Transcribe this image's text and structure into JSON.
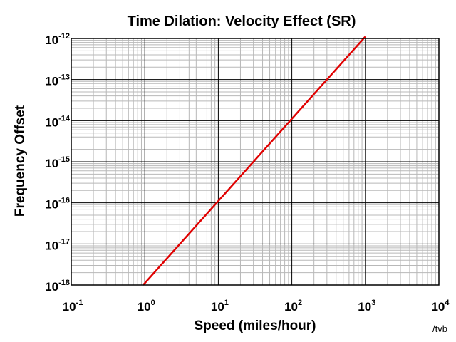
{
  "chart_data": {
    "type": "line",
    "title": "Time Dilation: Velocity Effect (SR)",
    "xlabel": "Speed (miles/hour)",
    "ylabel": "Frequency Offset",
    "xscale": "log",
    "yscale": "log",
    "xlim": [
      0.1,
      10000
    ],
    "ylim": [
      1e-18,
      1e-12
    ],
    "grid": true,
    "x_ticks": [
      {
        "base": "10",
        "exp": "-1"
      },
      {
        "base": "10",
        "exp": "0"
      },
      {
        "base": "10",
        "exp": "1"
      },
      {
        "base": "10",
        "exp": "2"
      },
      {
        "base": "10",
        "exp": "3"
      },
      {
        "base": "10",
        "exp": "4"
      }
    ],
    "y_ticks": [
      {
        "base": "10",
        "exp": "-12"
      },
      {
        "base": "10",
        "exp": "-13"
      },
      {
        "base": "10",
        "exp": "-14"
      },
      {
        "base": "10",
        "exp": "-15"
      },
      {
        "base": "10",
        "exp": "-16"
      },
      {
        "base": "10",
        "exp": "-17"
      },
      {
        "base": "10",
        "exp": "-18"
      }
    ],
    "series": [
      {
        "color": "#e00000",
        "x": [
          0.95,
          1000
        ],
        "y": [
          1e-18,
          1.11e-12
        ]
      }
    ],
    "credit": "/tvb"
  }
}
